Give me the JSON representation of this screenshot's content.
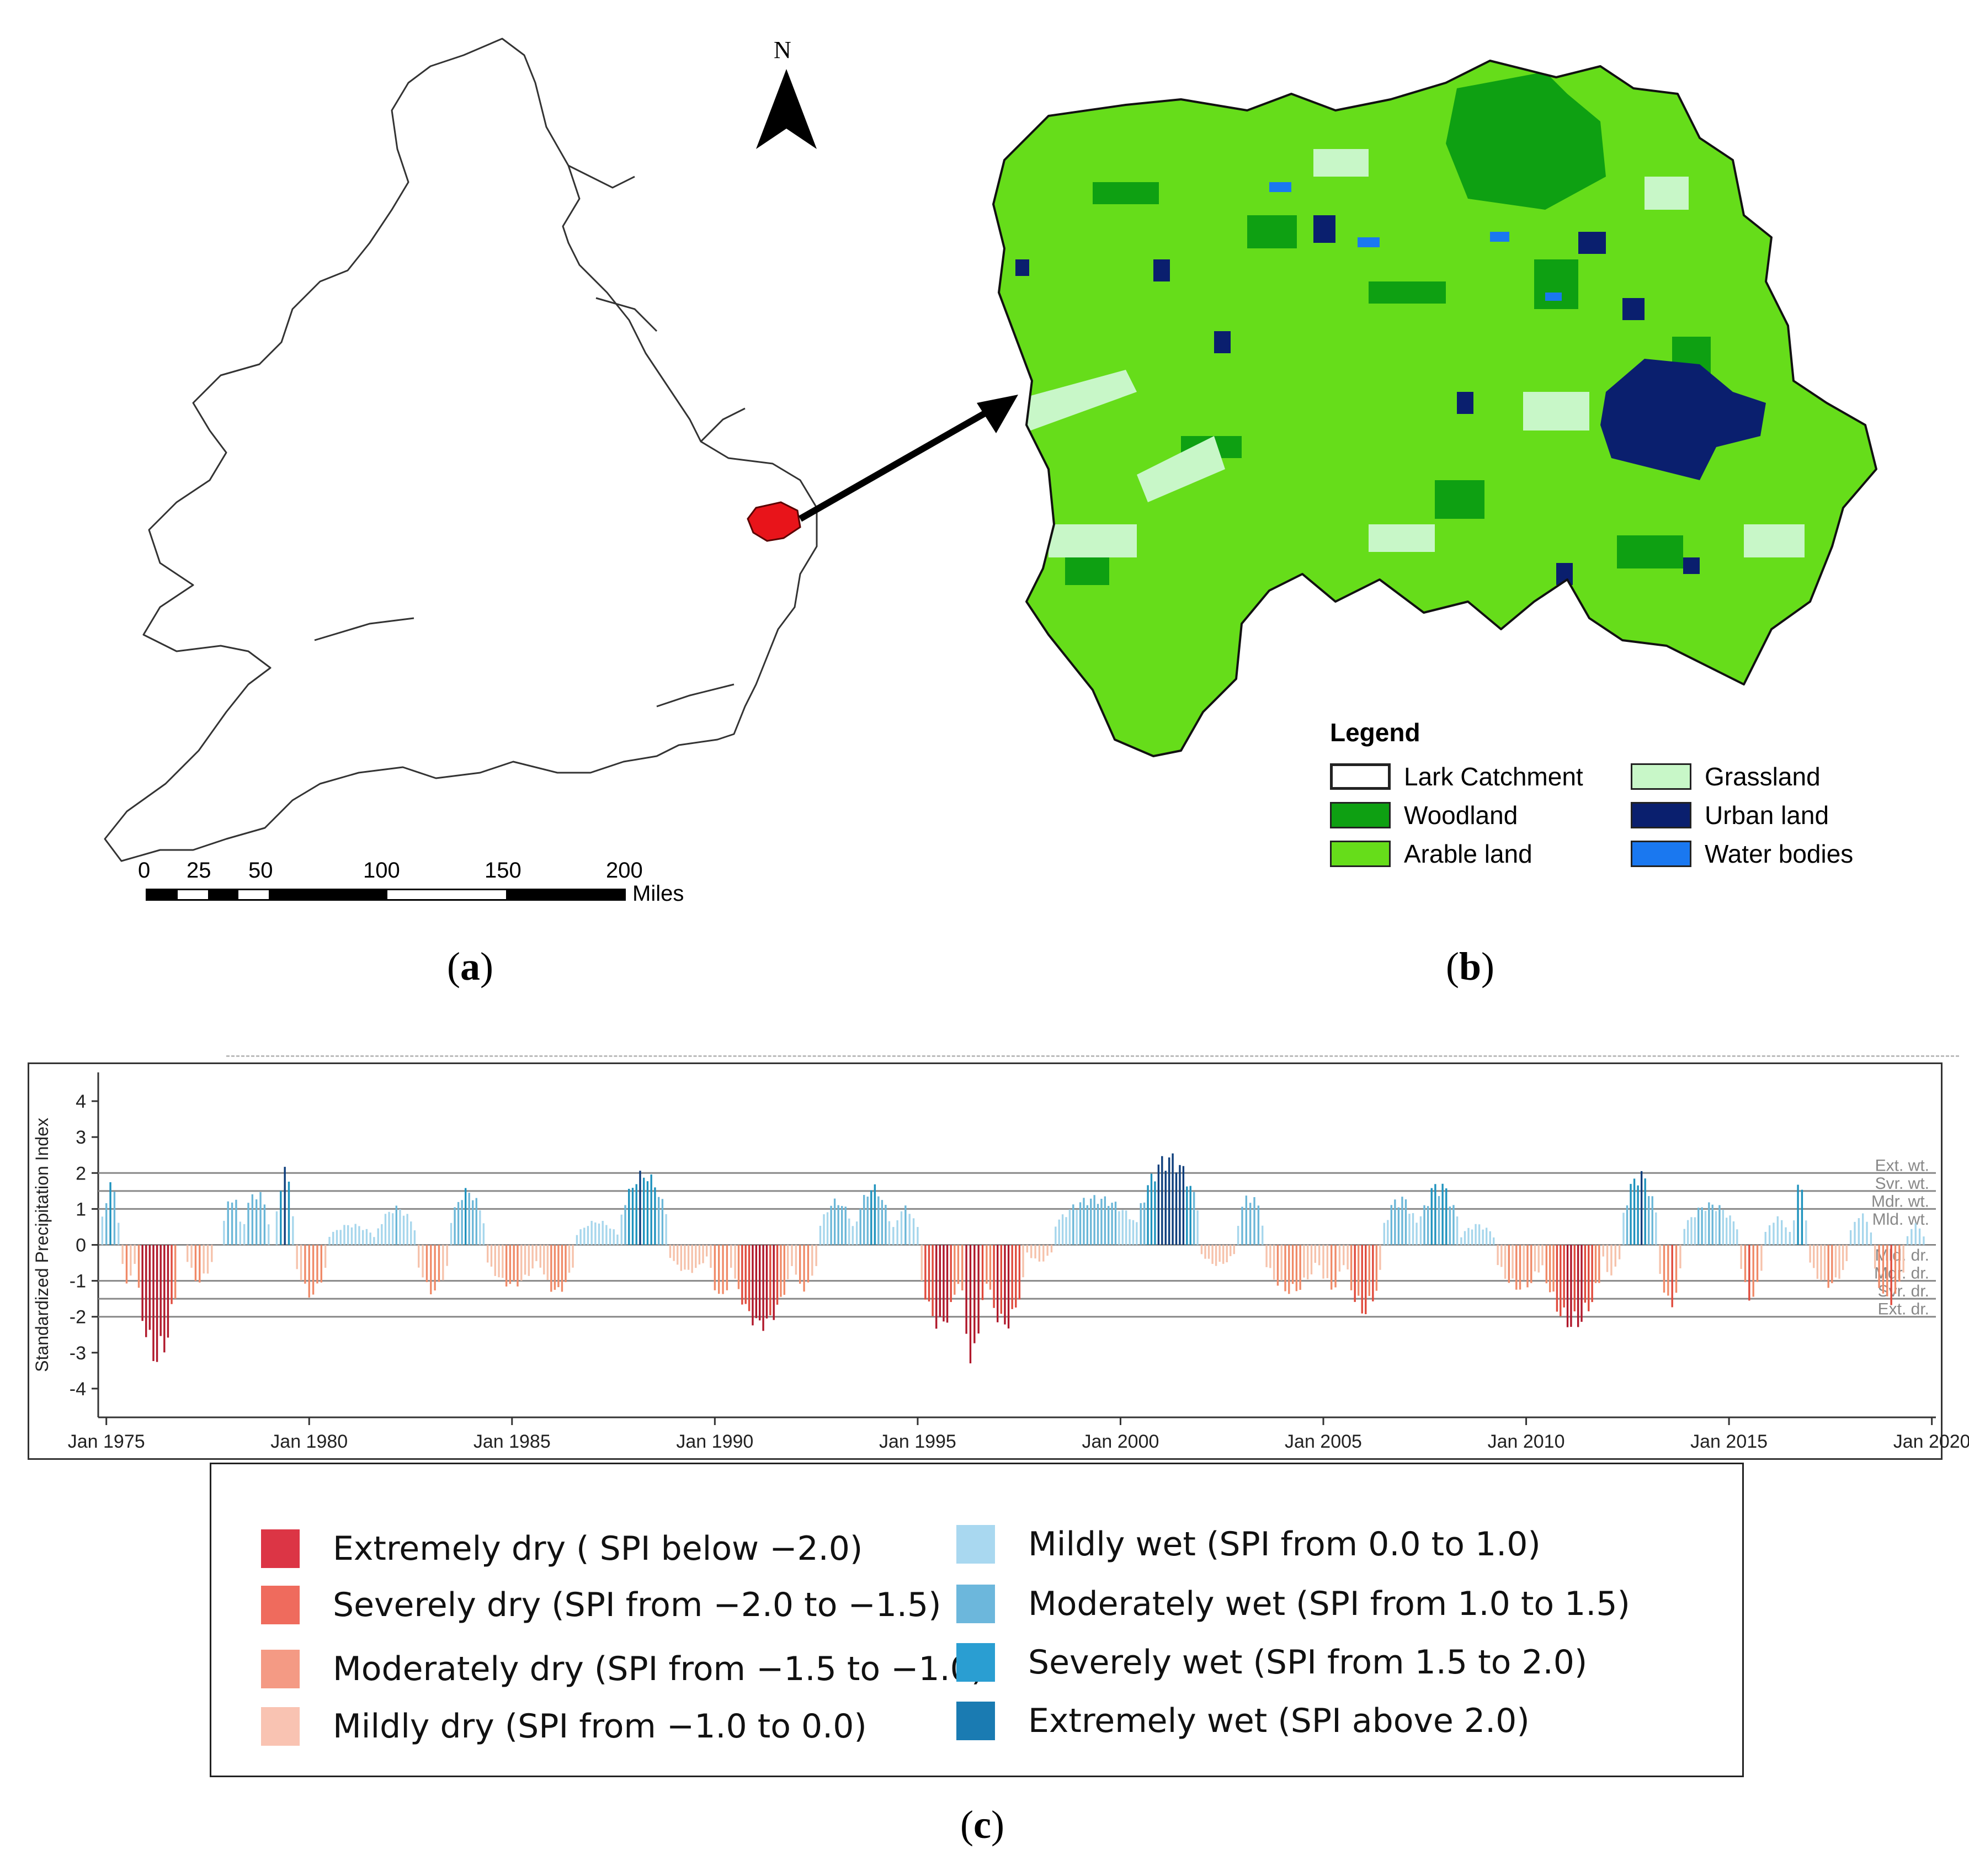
{
  "panel_labels": {
    "a": "(a)",
    "b": "(b)",
    "c": "(c)",
    "a_letter": "a",
    "b_letter": "b",
    "c_letter": "c"
  },
  "north_arrow": {
    "label": "N",
    "icon": "north-arrow-icon"
  },
  "scale_bar": {
    "ticks": [
      "0",
      "25",
      "50",
      "100",
      "150",
      "200"
    ],
    "unit": "Miles"
  },
  "map_b_legend": {
    "title": "Legend",
    "items": [
      {
        "label": "Lark Catchment",
        "color": "#ffffff"
      },
      {
        "label": "Grassland",
        "color": "#c8f7c8"
      },
      {
        "label": "Woodland",
        "color": "#0ea012"
      },
      {
        "label": "Urban land",
        "color": "#0a1f6e"
      },
      {
        "label": "Arable land",
        "color": "#66dd1a"
      },
      {
        "label": "Water bodies",
        "color": "#1a78f0"
      }
    ]
  },
  "map_colors": {
    "catchment_highlight": "#e8141a",
    "arable": "#66dd1a",
    "woodland": "#0ea012",
    "grassland": "#c8f7c8",
    "urban": "#0a1f6e",
    "water": "#1a78f0"
  },
  "chart_data": {
    "type": "bar",
    "ylabel": "Standardized Precipitation Index",
    "yticks": [
      "4",
      "3",
      "2",
      "1",
      "0",
      "-1",
      "-2",
      "-3",
      "-4"
    ],
    "ylim": [
      -4.8,
      4.8
    ],
    "xticks": [
      "Jan 1975",
      "Jan 1980",
      "Jan 1985",
      "Jan 1990",
      "Jan 1995",
      "Jan 2000",
      "Jan 2005",
      "Jan 2010",
      "Jan 2015",
      "Jan 2020"
    ],
    "xlim": [
      1974.8,
      2020.1
    ],
    "threshold_lines": [
      {
        "label": "Ext. wt.",
        "value": 2.0
      },
      {
        "label": "Svr. wt.",
        "value": 1.5
      },
      {
        "label": "Mdr. wt.",
        "value": 1.0
      },
      {
        "label": "Mld. wt.",
        "value": 0.5
      },
      {
        "label": "Mld. dr.",
        "value": -0.5
      },
      {
        "label": "Mdr. dr.",
        "value": -1.0
      },
      {
        "label": "Svr. dr.",
        "value": -1.5
      },
      {
        "label": "Ext. dr.",
        "value": -2.0
      }
    ],
    "episodes": [
      {
        "start": 1974.9,
        "end": 1975.3,
        "peak": 1.8
      },
      {
        "start": 1975.4,
        "end": 1975.7,
        "peak": -1.2
      },
      {
        "start": 1975.8,
        "end": 1976.7,
        "peak": -3.4
      },
      {
        "start": 1977.0,
        "end": 1977.6,
        "peak": -1.1
      },
      {
        "start": 1977.9,
        "end": 1978.3,
        "peak": 1.5
      },
      {
        "start": 1978.4,
        "end": 1979.0,
        "peak": 1.6
      },
      {
        "start": 1979.2,
        "end": 1979.6,
        "peak": 2.2
      },
      {
        "start": 1979.7,
        "end": 1980.4,
        "peak": -1.5
      },
      {
        "start": 1980.5,
        "end": 1981.6,
        "peak": 0.6
      },
      {
        "start": 1981.7,
        "end": 1982.6,
        "peak": 1.1
      },
      {
        "start": 1982.7,
        "end": 1983.4,
        "peak": -1.4
      },
      {
        "start": 1983.5,
        "end": 1984.3,
        "peak": 1.6
      },
      {
        "start": 1984.4,
        "end": 1985.6,
        "peak": -1.2
      },
      {
        "start": 1985.7,
        "end": 1986.5,
        "peak": -1.4
      },
      {
        "start": 1986.6,
        "end": 1987.6,
        "peak": 0.7
      },
      {
        "start": 1987.7,
        "end": 1988.8,
        "peak": 2.1
      },
      {
        "start": 1988.9,
        "end": 1989.8,
        "peak": -0.8
      },
      {
        "start": 1989.9,
        "end": 1990.4,
        "peak": -1.6
      },
      {
        "start": 1990.5,
        "end": 1991.8,
        "peak": -2.4
      },
      {
        "start": 1991.9,
        "end": 1992.5,
        "peak": -1.3
      },
      {
        "start": 1992.6,
        "end": 1993.4,
        "peak": 1.3
      },
      {
        "start": 1993.5,
        "end": 1994.3,
        "peak": 1.7
      },
      {
        "start": 1994.4,
        "end": 1995.0,
        "peak": 1.1
      },
      {
        "start": 1995.1,
        "end": 1996.0,
        "peak": -2.4
      },
      {
        "start": 1996.1,
        "end": 1996.6,
        "peak": -3.4
      },
      {
        "start": 1996.7,
        "end": 1997.6,
        "peak": -2.4
      },
      {
        "start": 1997.7,
        "end": 1998.3,
        "peak": -0.5
      },
      {
        "start": 1998.4,
        "end": 2000.4,
        "peak": 1.4
      },
      {
        "start": 2000.5,
        "end": 2001.9,
        "peak": 2.6
      },
      {
        "start": 2002.0,
        "end": 2002.8,
        "peak": -0.6
      },
      {
        "start": 2002.9,
        "end": 2003.5,
        "peak": 1.5
      },
      {
        "start": 2003.6,
        "end": 2004.8,
        "peak": -1.4
      },
      {
        "start": 2004.9,
        "end": 2005.5,
        "peak": -1.3
      },
      {
        "start": 2005.6,
        "end": 2006.4,
        "peak": -2.0
      },
      {
        "start": 2006.5,
        "end": 2007.3,
        "peak": 1.4
      },
      {
        "start": 2007.4,
        "end": 2008.3,
        "peak": 1.8
      },
      {
        "start": 2008.4,
        "end": 2009.2,
        "peak": 0.6
      },
      {
        "start": 2009.3,
        "end": 2010.4,
        "peak": -1.3
      },
      {
        "start": 2010.5,
        "end": 2011.8,
        "peak": -2.4
      },
      {
        "start": 2011.9,
        "end": 2012.3,
        "peak": -0.9
      },
      {
        "start": 2012.4,
        "end": 2013.2,
        "peak": 2.1
      },
      {
        "start": 2013.3,
        "end": 2013.8,
        "peak": -1.8
      },
      {
        "start": 2013.9,
        "end": 2015.2,
        "peak": 1.2
      },
      {
        "start": 2015.3,
        "end": 2015.8,
        "peak": -1.6
      },
      {
        "start": 2015.9,
        "end": 2016.5,
        "peak": 0.8
      },
      {
        "start": 2016.6,
        "end": 2016.9,
        "peak": 1.8
      },
      {
        "start": 2017.0,
        "end": 2017.9,
        "peak": -1.2
      },
      {
        "start": 2018.0,
        "end": 2018.5,
        "peak": 0.9
      },
      {
        "start": 2018.6,
        "end": 2019.3,
        "peak": -1.7
      },
      {
        "start": 2019.4,
        "end": 2019.8,
        "peak": 0.6
      }
    ],
    "class_colors": {
      "extremely_dry": "#b0172a",
      "severely_dry": "#e04a3c",
      "moderately_dry": "#f08a68",
      "mildly_dry": "#f6c2ab",
      "mildly_wet": "#a6d6ec",
      "moderately_wet": "#6bb7d8",
      "severely_wet": "#1f93be",
      "extremely_wet": "#0d3e7c"
    }
  },
  "spi_legend": [
    {
      "label": "Extremely dry ( SPI below −2.0)",
      "color": "#dc3545"
    },
    {
      "label": "Mildly wet (SPI from 0.0 to 1.0)",
      "color": "#a9d8f0"
    },
    {
      "label": "Severely dry (SPI from −2.0 to −1.5)",
      "color": "#ef6b5d"
    },
    {
      "label": "Moderately wet (SPI from 1.0 to 1.5)",
      "color": "#6cb7dc"
    },
    {
      "label": "Moderately dry (SPI from −1.5 to −1.0)",
      "color": "#f49a84"
    },
    {
      "label": "Severely wet (SPI from 1.5 to 2.0)",
      "color": "#2a9ed2"
    },
    {
      "label": "Mildly dry (SPI from −1.0 to 0.0)",
      "color": "#f9c3b2"
    },
    {
      "label": "Extremely wet (SPI above 2.0)",
      "color": "#1a7bb2"
    }
  ]
}
